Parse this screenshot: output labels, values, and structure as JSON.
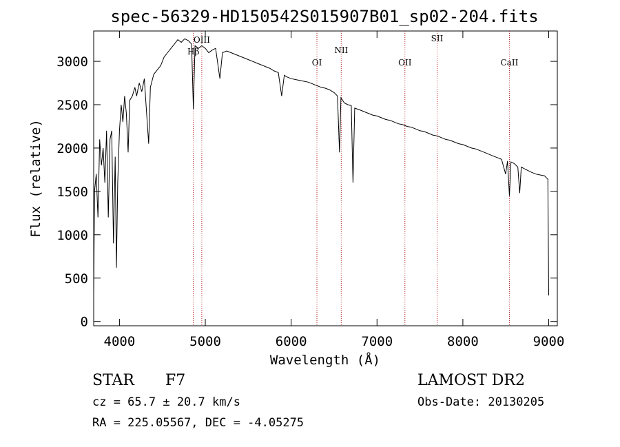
{
  "chart_data": {
    "type": "line",
    "title": "spec-56329-HD150542S015907B01_sp02-204.fits",
    "xlabel": "Wavelength (Å)",
    "ylabel": "Flux (relative)",
    "xlim": [
      3700,
      9100
    ],
    "ylim": [
      -50,
      3350
    ],
    "xticks": [
      4000,
      5000,
      6000,
      7000,
      8000,
      9000
    ],
    "yticks": [
      0,
      500,
      1000,
      1500,
      2000,
      2500,
      3000
    ],
    "series": [
      {
        "name": "flux",
        "points": [
          [
            3700,
            300
          ],
          [
            3710,
            1500
          ],
          [
            3730,
            1700
          ],
          [
            3750,
            1200
          ],
          [
            3770,
            2100
          ],
          [
            3790,
            1800
          ],
          [
            3810,
            2000
          ],
          [
            3830,
            1600
          ],
          [
            3850,
            2200
          ],
          [
            3870,
            1200
          ],
          [
            3890,
            2100
          ],
          [
            3910,
            2200
          ],
          [
            3930,
            900
          ],
          [
            3950,
            1900
          ],
          [
            3965,
            620
          ],
          [
            3980,
            1600
          ],
          [
            4000,
            2200
          ],
          [
            4020,
            2500
          ],
          [
            4040,
            2300
          ],
          [
            4060,
            2600
          ],
          [
            4080,
            2400
          ],
          [
            4101,
            1950
          ],
          [
            4120,
            2550
          ],
          [
            4150,
            2600
          ],
          [
            4180,
            2700
          ],
          [
            4200,
            2600
          ],
          [
            4230,
            2750
          ],
          [
            4260,
            2650
          ],
          [
            4290,
            2800
          ],
          [
            4310,
            2500
          ],
          [
            4340,
            2050
          ],
          [
            4360,
            2700
          ],
          [
            4400,
            2850
          ],
          [
            4440,
            2900
          ],
          [
            4480,
            2950
          ],
          [
            4520,
            3050
          ],
          [
            4560,
            3100
          ],
          [
            4600,
            3150
          ],
          [
            4640,
            3200
          ],
          [
            4680,
            3250
          ],
          [
            4720,
            3220
          ],
          [
            4760,
            3260
          ],
          [
            4800,
            3240
          ],
          [
            4840,
            3200
          ],
          [
            4861,
            2450
          ],
          [
            4880,
            3180
          ],
          [
            4920,
            3150
          ],
          [
            4960,
            3180
          ],
          [
            5000,
            3150
          ],
          [
            5040,
            3100
          ],
          [
            5080,
            3130
          ],
          [
            5120,
            3150
          ],
          [
            5170,
            2800
          ],
          [
            5200,
            3100
          ],
          [
            5250,
            3120
          ],
          [
            5300,
            3100
          ],
          [
            5350,
            3080
          ],
          [
            5400,
            3060
          ],
          [
            5450,
            3040
          ],
          [
            5500,
            3020
          ],
          [
            5550,
            3000
          ],
          [
            5600,
            2980
          ],
          [
            5650,
            2960
          ],
          [
            5700,
            2940
          ],
          [
            5750,
            2920
          ],
          [
            5800,
            2890
          ],
          [
            5850,
            2870
          ],
          [
            5890,
            2600
          ],
          [
            5920,
            2840
          ],
          [
            5950,
            2820
          ],
          [
            6000,
            2800
          ],
          [
            6050,
            2790
          ],
          [
            6100,
            2780
          ],
          [
            6150,
            2770
          ],
          [
            6200,
            2760
          ],
          [
            6250,
            2740
          ],
          [
            6300,
            2720
          ],
          [
            6350,
            2700
          ],
          [
            6400,
            2690
          ],
          [
            6450,
            2670
          ],
          [
            6500,
            2640
          ],
          [
            6540,
            2600
          ],
          [
            6563,
            1950
          ],
          [
            6580,
            2580
          ],
          [
            6620,
            2520
          ],
          [
            6660,
            2500
          ],
          [
            6700,
            2490
          ],
          [
            6720,
            1600
          ],
          [
            6740,
            2460
          ],
          [
            6800,
            2440
          ],
          [
            6850,
            2420
          ],
          [
            6900,
            2400
          ],
          [
            6950,
            2380
          ],
          [
            7000,
            2370
          ],
          [
            7050,
            2350
          ],
          [
            7100,
            2330
          ],
          [
            7150,
            2320
          ],
          [
            7200,
            2300
          ],
          [
            7250,
            2280
          ],
          [
            7300,
            2270
          ],
          [
            7350,
            2250
          ],
          [
            7400,
            2240
          ],
          [
            7450,
            2220
          ],
          [
            7500,
            2200
          ],
          [
            7550,
            2190
          ],
          [
            7600,
            2170
          ],
          [
            7650,
            2150
          ],
          [
            7700,
            2140
          ],
          [
            7750,
            2120
          ],
          [
            7800,
            2100
          ],
          [
            7850,
            2090
          ],
          [
            7900,
            2070
          ],
          [
            7950,
            2050
          ],
          [
            8000,
            2040
          ],
          [
            8050,
            2020
          ],
          [
            8100,
            2000
          ],
          [
            8150,
            1990
          ],
          [
            8200,
            1970
          ],
          [
            8250,
            1950
          ],
          [
            8300,
            1930
          ],
          [
            8350,
            1910
          ],
          [
            8400,
            1890
          ],
          [
            8450,
            1870
          ],
          [
            8498,
            1700
          ],
          [
            8520,
            1850
          ],
          [
            8542,
            1450
          ],
          [
            8560,
            1840
          ],
          [
            8600,
            1820
          ],
          [
            8640,
            1780
          ],
          [
            8662,
            1480
          ],
          [
            8680,
            1780
          ],
          [
            8720,
            1760
          ],
          [
            8760,
            1740
          ],
          [
            8800,
            1720
          ],
          [
            8850,
            1700
          ],
          [
            8900,
            1690
          ],
          [
            8950,
            1680
          ],
          [
            8990,
            1640
          ],
          [
            9000,
            300
          ]
        ]
      }
    ],
    "line_markers": [
      {
        "label": "Hβ",
        "wavelength": 4861
      },
      {
        "label": "OIII",
        "wavelength": 4959
      },
      {
        "label": "OI",
        "wavelength": 6300
      },
      {
        "label": "NII",
        "wavelength": 6583
      },
      {
        "label": "OII",
        "wavelength": 7325
      },
      {
        "label": "SII",
        "wavelength": 7700
      },
      {
        "label": "CaII",
        "wavelength": 8542
      }
    ]
  },
  "info": {
    "class": "STAR",
    "subclass": "F7",
    "survey": "LAMOST DR2",
    "cz": "cz = 65.7 ± 20.7 km/s",
    "obs_date": "Obs-Date: 20130205",
    "coords": "RA = 225.05567, DEC =  -4.05275"
  },
  "colors": {
    "axis": "#000000",
    "marker": "#b22222",
    "spectrum": "#000000"
  }
}
